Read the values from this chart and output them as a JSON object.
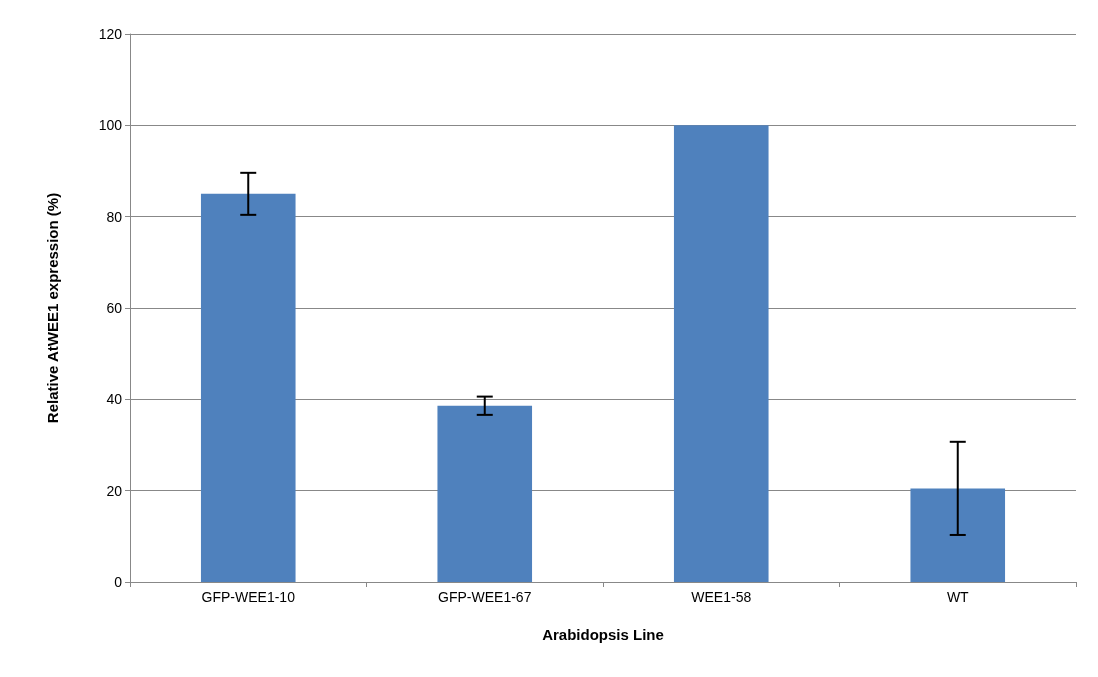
{
  "chart_data": {
    "type": "bar",
    "xlabel": "Arabidopsis Line",
    "ylabel": "Relative AtWEE1 expression (%)",
    "categories": [
      "GFP-WEE1-10",
      "GFP-WEE1-67",
      "WEE1-58",
      "WT"
    ],
    "values": [
      85,
      38.6,
      100,
      20.5
    ],
    "errors": [
      4.6,
      2,
      null,
      10.2
    ],
    "color": "#4f81bd",
    "ylim": [
      0,
      120
    ],
    "yticks": [
      0,
      20,
      40,
      60,
      80,
      100,
      120
    ],
    "grid": "y"
  }
}
